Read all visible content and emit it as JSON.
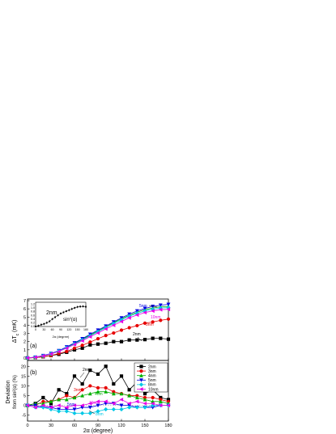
{
  "chart_data": [
    {
      "panel": "a",
      "type": "line",
      "panel_label": "(a)",
      "ylabel": "ΔT",
      "ylabel_sub": "c",
      "ylabel_unit": " (mK)",
      "xlim": [
        0,
        180
      ],
      "ylim": [
        -0.3,
        7.2
      ],
      "y_ticks": [
        0,
        1,
        2,
        3,
        4,
        5,
        6,
        7
      ],
      "x": [
        0,
        10,
        20,
        30,
        40,
        50,
        60,
        70,
        80,
        90,
        100,
        110,
        120,
        130,
        140,
        150,
        160,
        170,
        180
      ],
      "series": [
        {
          "name": "2nm",
          "color": "#000000",
          "marker": "square",
          "values": [
            0.0,
            0.05,
            0.15,
            0.3,
            0.45,
            0.7,
            1.0,
            1.2,
            1.6,
            1.7,
            1.8,
            2.0,
            2.0,
            2.2,
            2.2,
            2.25,
            2.4,
            2.4,
            2.3
          ]
        },
        {
          "name": "3nm",
          "color": "#e60000",
          "marker": "circle",
          "values": [
            0.0,
            0.05,
            0.15,
            0.3,
            0.55,
            0.8,
            1.2,
            1.55,
            1.95,
            2.35,
            2.75,
            3.05,
            3.4,
            3.7,
            3.95,
            4.25,
            4.4,
            4.6,
            4.75
          ]
        },
        {
          "name": "4nm",
          "color": "#00b000",
          "marker": "triangle-up",
          "values": [
            0.0,
            0.1,
            0.25,
            0.5,
            0.85,
            1.3,
            1.8,
            2.3,
            2.8,
            3.3,
            3.8,
            4.3,
            4.8,
            5.2,
            5.6,
            5.9,
            6.1,
            6.25,
            6.3
          ]
        },
        {
          "name": "5nm",
          "color": "#0000e0",
          "marker": "triangle-down",
          "values": [
            0.0,
            0.1,
            0.3,
            0.55,
            0.9,
            1.35,
            1.85,
            2.35,
            2.9,
            3.4,
            3.9,
            4.4,
            4.9,
            5.35,
            5.75,
            6.05,
            6.3,
            6.45,
            6.55
          ]
        },
        {
          "name": "8nm",
          "color": "#00c8e6",
          "marker": "diamond",
          "values": [
            0.0,
            0.1,
            0.25,
            0.5,
            0.85,
            1.25,
            1.7,
            2.2,
            2.7,
            3.2,
            3.7,
            4.2,
            4.65,
            5.1,
            5.45,
            5.75,
            5.95,
            6.1,
            6.15
          ]
        },
        {
          "name": "10nm",
          "color": "#e600e6",
          "marker": "triangle-left",
          "values": [
            0.0,
            0.1,
            0.25,
            0.5,
            0.8,
            1.2,
            1.65,
            2.1,
            2.6,
            3.05,
            3.55,
            4.0,
            4.45,
            4.9,
            5.25,
            5.55,
            5.75,
            5.9,
            5.95
          ]
        }
      ],
      "annotations": [
        "5nm",
        "3nm",
        "10nm",
        "2nm"
      ],
      "inset": {
        "type": "line",
        "label_series": "2nm",
        "label_curve": "sin",
        "label_curve_sup": "2",
        "label_curve_arg": "(α)",
        "xlabel": "2α (degree)",
        "xlim": [
          0,
          180
        ],
        "ylim": [
          0,
          1.3
        ],
        "x_ticks": [
          0,
          30,
          60,
          90,
          120,
          150,
          180
        ],
        "y_ticks": [
          "0.0",
          "0.2",
          "0.4",
          "0.6",
          "0.8",
          "1.0",
          "1.2"
        ],
        "x": [
          0,
          10,
          20,
          30,
          40,
          50,
          60,
          70,
          80,
          90,
          100,
          110,
          120,
          130,
          140,
          150,
          160,
          170,
          180
        ],
        "values": [
          0.0,
          0.04,
          0.1,
          0.14,
          0.2,
          0.28,
          0.4,
          0.5,
          0.6,
          0.7,
          0.76,
          0.82,
          0.88,
          0.94,
          1.0,
          1.05,
          1.07,
          1.08,
          1.06
        ]
      }
    },
    {
      "panel": "b",
      "type": "line",
      "panel_label": "(b)",
      "ylabel_line1": "Deviation",
      "ylabel_line2": "from sin²(α) (%)",
      "xlabel": "2α (degree)",
      "xlim": [
        0,
        180
      ],
      "ylim": [
        -8,
        23
      ],
      "y_ticks": [
        -5,
        0,
        5,
        10,
        15,
        20
      ],
      "x_ticks": [
        0,
        30,
        60,
        90,
        120,
        150,
        180
      ],
      "x": [
        0,
        10,
        20,
        30,
        40,
        50,
        60,
        70,
        80,
        90,
        100,
        110,
        120,
        130,
        140,
        150,
        160,
        170,
        180
      ],
      "series": [
        {
          "name": "2nm",
          "color": "#000000",
          "marker": "square",
          "values": [
            0,
            1,
            4,
            1,
            8,
            6,
            15,
            11,
            18,
            16,
            20,
            11,
            15,
            8,
            12,
            6,
            8,
            4,
            3
          ]
        },
        {
          "name": "3nm",
          "color": "#e60000",
          "marker": "circle",
          "values": [
            0,
            0,
            2,
            2,
            3,
            5,
            4,
            8,
            10,
            9,
            9,
            7,
            6,
            5,
            5,
            4,
            4,
            3,
            2
          ]
        },
        {
          "name": "4nm",
          "color": "#00b000",
          "marker": "triangle-up",
          "values": [
            0,
            1,
            1,
            2,
            3,
            3,
            4,
            5,
            6,
            7,
            7,
            6,
            6,
            5,
            4,
            3,
            2,
            2,
            1
          ]
        },
        {
          "name": "5nm",
          "color": "#0000e0",
          "marker": "triangle-down",
          "values": [
            0,
            0,
            -1,
            -1,
            -2,
            -2,
            -2,
            -1,
            -1,
            0,
            1,
            1,
            0,
            0,
            -1,
            -1,
            -1,
            0,
            0
          ]
        },
        {
          "name": "8nm",
          "color": "#00c8e6",
          "marker": "diamond",
          "values": [
            0,
            -1,
            -1,
            -2,
            -3,
            -3,
            -4,
            -4,
            -4,
            -3,
            -2,
            -2,
            -2,
            -1,
            -1,
            -1,
            0,
            0,
            0
          ]
        },
        {
          "name": "10nm",
          "color": "#e600e6",
          "marker": "triangle-left",
          "values": [
            0,
            -1,
            0,
            -1,
            0,
            -1,
            0,
            0,
            1,
            2,
            2,
            1,
            3,
            1,
            2,
            1,
            1,
            0,
            0
          ]
        }
      ],
      "annotations": [
        "2nm",
        "3nm",
        "4nm",
        "5nm",
        "10nm",
        "8nm"
      ],
      "legend": {
        "placement": "top-right inside panel (b)",
        "entries": [
          "2nm",
          "3nm",
          "4nm",
          "5nm",
          "8nm",
          "10nm"
        ]
      }
    }
  ]
}
